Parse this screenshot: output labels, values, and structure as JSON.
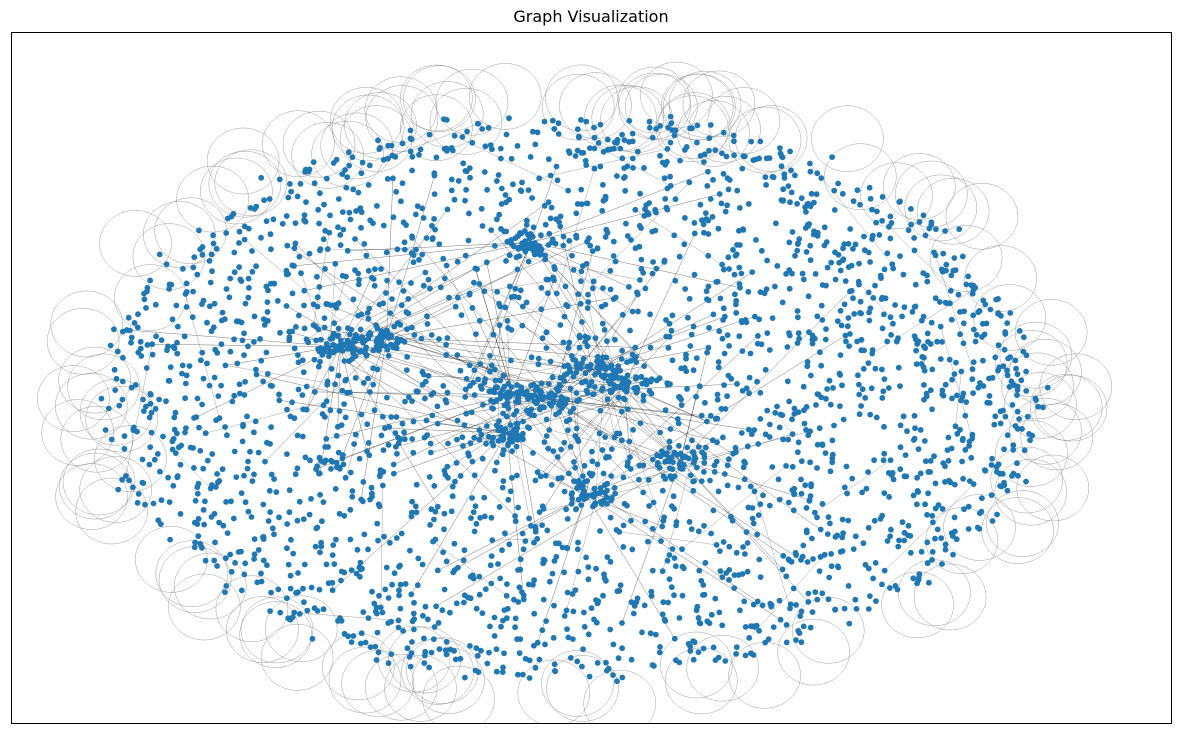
{
  "figure": {
    "title": "Graph Visualization"
  },
  "graph": {
    "node_color": "#1f77b4",
    "edge_color": "#000000",
    "self_loop_color": "#888888",
    "background_color": "#ffffff",
    "frame_color": "#000000",
    "axes_ticks_visible": false,
    "dense_clusters": 10
  }
}
